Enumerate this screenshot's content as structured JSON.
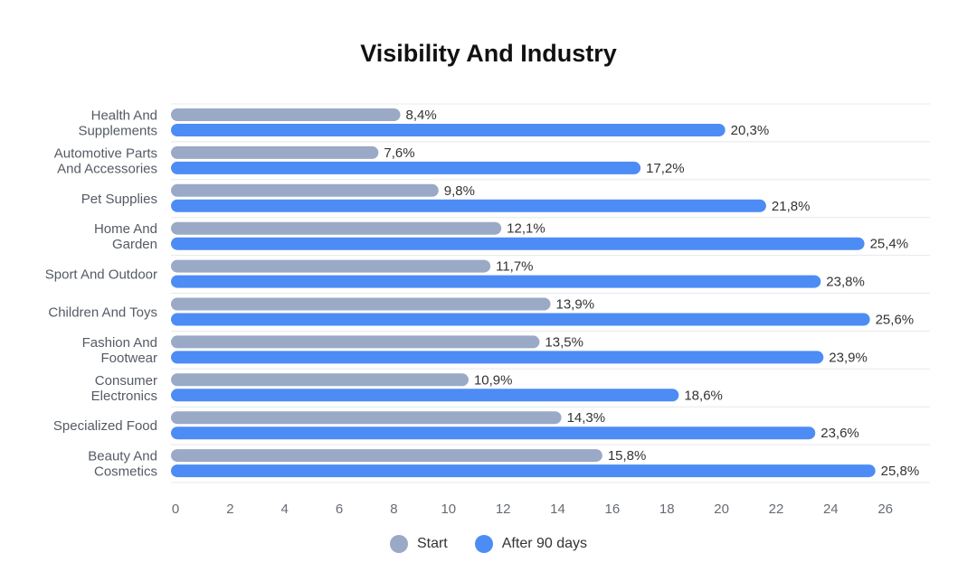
{
  "chart_data": {
    "type": "bar",
    "orientation": "horizontal",
    "title": "Visibility And Industry",
    "categories": [
      [
        "Health And",
        "Supplements"
      ],
      [
        "Automotive Parts",
        "And Accessories"
      ],
      [
        "Pet Supplies"
      ],
      [
        "Home And",
        "Garden"
      ],
      [
        "Sport And Outdoor"
      ],
      [
        "Children And Toys"
      ],
      [
        "Fashion And",
        "Footwear"
      ],
      [
        "Consumer",
        "Electronics"
      ],
      [
        "Specialized Food"
      ],
      [
        "Beauty And",
        "Cosmetics"
      ]
    ],
    "series": [
      {
        "name": "Start",
        "color": "#9aa9c6",
        "values": [
          8.4,
          7.6,
          9.8,
          12.1,
          11.7,
          13.9,
          13.5,
          10.9,
          14.3,
          15.8
        ],
        "labels": [
          "8,4%",
          "7,6%",
          "9,8%",
          "12,1%",
          "11,7%",
          "13,9%",
          "13,5%",
          "10,9%",
          "14,3%",
          "15,8%"
        ]
      },
      {
        "name": "After 90 days",
        "color": "#4d8cf5",
        "values": [
          20.3,
          17.2,
          21.8,
          25.4,
          23.8,
          25.6,
          23.9,
          18.6,
          23.6,
          25.8
        ],
        "labels": [
          "20,3%",
          "17,2%",
          "21,8%",
          "25,4%",
          "23,8%",
          "25,6%",
          "23,9%",
          "18,6%",
          "23,6%",
          "25,8%"
        ]
      }
    ],
    "x_ticks": [
      0,
      2,
      4,
      6,
      8,
      10,
      12,
      14,
      16,
      18,
      20,
      22,
      24,
      26
    ],
    "xlim": [
      0,
      27.8
    ],
    "grid": "horizontal separators",
    "legend_position": "bottom-center"
  }
}
